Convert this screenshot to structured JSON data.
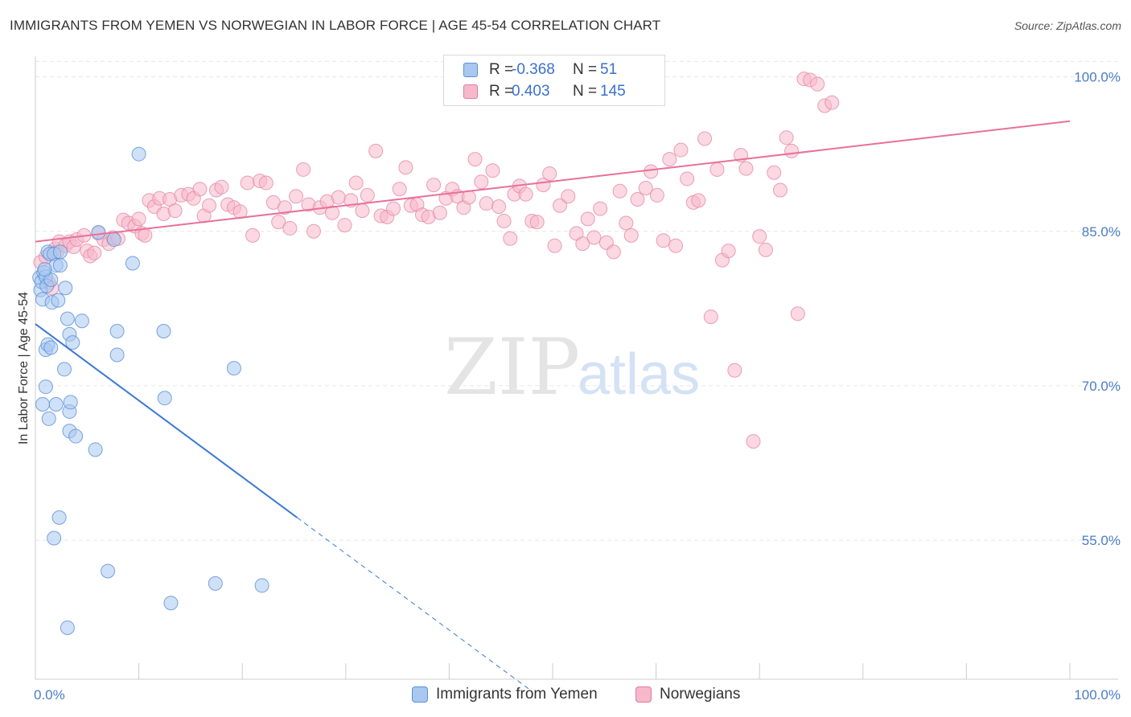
{
  "title": "IMMIGRANTS FROM YEMEN VS NORWEGIAN IN LABOR FORCE | AGE 45-54 CORRELATION CHART",
  "source": "Source: ZipAtlas.com",
  "watermark": {
    "zip": "ZIP",
    "atlas": "atlas"
  },
  "legend": {
    "rows": [
      {
        "r_label": "R =",
        "r_value": "-0.368",
        "n_label": "N =",
        "n_value": "51",
        "color": "#a8c8f0",
        "border": "#5b8fd6"
      },
      {
        "r_label": "R =",
        "r_value": "0.403",
        "n_label": "N =",
        "n_value": "145",
        "color": "#f7b8cb",
        "border": "#e07a9c"
      }
    ]
  },
  "bottom_legend": [
    {
      "label": "Immigrants from Yemen",
      "color": "#a8c8f0",
      "border": "#5b8fd6"
    },
    {
      "label": "Norwegians",
      "color": "#f7b8cb",
      "border": "#e07a9c"
    }
  ],
  "colors": {
    "blue": "#3a78d4",
    "pink": "#e8709a",
    "blue_fill": "#a8c8f0",
    "pink_fill": "#f7b8cb",
    "tick_text": "#4a7cc9"
  },
  "chart_data": {
    "type": "scatter",
    "title": "IMMIGRANTS FROM YEMEN VS NORWEGIAN IN LABOR FORCE | AGE 45-54 CORRELATION CHART",
    "xlabel": "",
    "ylabel": "In Labor Force | Age 45-54",
    "xlim": [
      0,
      100
    ],
    "ylim": [
      41.5,
      102.0
    ],
    "x_tick_labels": [
      "0.0%",
      "100.0%"
    ],
    "y_ticks": [
      55,
      70,
      85,
      100
    ],
    "y_tick_labels": [
      "55.0%",
      "70.0%",
      "85.0%",
      "100.0%"
    ],
    "grid": true,
    "series": [
      {
        "name": "Immigrants from Yemen",
        "color": "#3a78d4",
        "trend": {
          "x0": 0,
          "y0": 76.0,
          "x1": 25.3,
          "y1": 57.2,
          "dash_to_x": 47.9
        },
        "points": [
          [
            0.4,
            80.5
          ],
          [
            0.5,
            79.3
          ],
          [
            0.6,
            80.1
          ],
          [
            0.7,
            78.4
          ],
          [
            0.8,
            81.0
          ],
          [
            1.0,
            80.6
          ],
          [
            1.1,
            79.7
          ],
          [
            1.2,
            83.0
          ],
          [
            1.4,
            82.8
          ],
          [
            1.5,
            80.3
          ],
          [
            1.6,
            78.1
          ],
          [
            1.8,
            82.8
          ],
          [
            2.0,
            81.7
          ],
          [
            2.2,
            78.3
          ],
          [
            2.4,
            81.7
          ],
          [
            2.9,
            79.5
          ],
          [
            3.1,
            76.5
          ],
          [
            3.3,
            75.0
          ],
          [
            3.6,
            74.2
          ],
          [
            4.5,
            76.3
          ],
          [
            6.1,
            84.9
          ],
          [
            7.6,
            84.2
          ],
          [
            7.9,
            75.3
          ],
          [
            7.9,
            73.0
          ],
          [
            9.4,
            81.9
          ],
          [
            10.0,
            92.5
          ],
          [
            12.4,
            75.3
          ],
          [
            12.5,
            68.8
          ],
          [
            1.0,
            73.5
          ],
          [
            1.2,
            74.0
          ],
          [
            1.5,
            73.7
          ],
          [
            2.0,
            68.2
          ],
          [
            2.8,
            71.6
          ],
          [
            0.7,
            68.2
          ],
          [
            1.0,
            69.9
          ],
          [
            1.3,
            66.8
          ],
          [
            3.3,
            67.5
          ],
          [
            3.4,
            68.4
          ],
          [
            3.3,
            65.6
          ],
          [
            3.9,
            65.1
          ],
          [
            5.8,
            63.8
          ],
          [
            2.3,
            57.2
          ],
          [
            1.8,
            55.2
          ],
          [
            7.0,
            52.0
          ],
          [
            13.1,
            48.9
          ],
          [
            17.4,
            50.8
          ],
          [
            21.9,
            50.6
          ],
          [
            3.1,
            46.5
          ],
          [
            19.2,
            71.7
          ],
          [
            2.4,
            83.0
          ],
          [
            0.9,
            81.3
          ]
        ]
      },
      {
        "name": "Norwegians",
        "color": "#e8709a",
        "trend": {
          "x0": 0,
          "y0": 84.0,
          "x1": 100,
          "y1": 95.7
        },
        "points": [
          [
            0.5,
            82.0
          ],
          [
            1.0,
            82.5
          ],
          [
            1.3,
            80.0
          ],
          [
            1.6,
            79.5
          ],
          [
            1.9,
            83.3
          ],
          [
            2.1,
            83.0
          ],
          [
            2.3,
            84.0
          ],
          [
            2.9,
            83.6
          ],
          [
            3.3,
            84.0
          ],
          [
            3.7,
            83.5
          ],
          [
            4.0,
            84.2
          ],
          [
            4.7,
            84.6
          ],
          [
            5.0,
            83.1
          ],
          [
            5.3,
            82.6
          ],
          [
            5.7,
            82.9
          ],
          [
            6.1,
            84.8
          ],
          [
            6.6,
            84.2
          ],
          [
            7.1,
            83.8
          ],
          [
            7.5,
            84.4
          ],
          [
            8.0,
            84.3
          ],
          [
            8.5,
            86.1
          ],
          [
            9.0,
            85.8
          ],
          [
            9.6,
            85.5
          ],
          [
            10.0,
            86.2
          ],
          [
            10.3,
            84.8
          ],
          [
            10.6,
            84.6
          ],
          [
            11.0,
            88.0
          ],
          [
            11.5,
            87.4
          ],
          [
            12.0,
            88.2
          ],
          [
            12.4,
            86.7
          ],
          [
            13.0,
            88.1
          ],
          [
            13.5,
            87.0
          ],
          [
            14.1,
            88.5
          ],
          [
            14.8,
            88.6
          ],
          [
            15.3,
            88.2
          ],
          [
            15.9,
            89.1
          ],
          [
            16.3,
            86.5
          ],
          [
            16.8,
            87.5
          ],
          [
            17.5,
            89.0
          ],
          [
            18.0,
            89.3
          ],
          [
            18.6,
            87.6
          ],
          [
            19.2,
            87.3
          ],
          [
            19.8,
            86.9
          ],
          [
            20.5,
            89.7
          ],
          [
            21.0,
            84.6
          ],
          [
            21.7,
            89.9
          ],
          [
            22.3,
            89.7
          ],
          [
            23.0,
            87.8
          ],
          [
            23.5,
            85.9
          ],
          [
            24.1,
            87.3
          ],
          [
            24.6,
            85.3
          ],
          [
            25.2,
            88.4
          ],
          [
            25.9,
            91.0
          ],
          [
            26.4,
            87.6
          ],
          [
            26.9,
            85.0
          ],
          [
            27.5,
            87.3
          ],
          [
            28.2,
            87.9
          ],
          [
            28.7,
            86.8
          ],
          [
            29.3,
            88.3
          ],
          [
            29.9,
            85.6
          ],
          [
            30.5,
            88.0
          ],
          [
            31.0,
            89.7
          ],
          [
            31.6,
            87.0
          ],
          [
            32.1,
            88.5
          ],
          [
            32.9,
            92.8
          ],
          [
            33.4,
            86.5
          ],
          [
            34.0,
            86.4
          ],
          [
            34.6,
            87.2
          ],
          [
            35.2,
            89.1
          ],
          [
            35.8,
            91.2
          ],
          [
            36.3,
            87.5
          ],
          [
            36.9,
            87.6
          ],
          [
            37.4,
            86.6
          ],
          [
            38.0,
            86.4
          ],
          [
            38.5,
            89.5
          ],
          [
            39.1,
            86.8
          ],
          [
            39.7,
            88.2
          ],
          [
            40.3,
            89.1
          ],
          [
            40.8,
            88.4
          ],
          [
            41.4,
            87.3
          ],
          [
            41.9,
            88.3
          ],
          [
            42.5,
            92.0
          ],
          [
            43.1,
            89.8
          ],
          [
            43.6,
            87.7
          ],
          [
            44.2,
            90.9
          ],
          [
            44.8,
            87.4
          ],
          [
            45.3,
            86.0
          ],
          [
            45.9,
            84.3
          ],
          [
            46.3,
            88.6
          ],
          [
            46.8,
            89.4
          ],
          [
            47.4,
            88.6
          ],
          [
            48.0,
            86.0
          ],
          [
            48.5,
            85.9
          ],
          [
            49.1,
            89.5
          ],
          [
            49.7,
            90.6
          ],
          [
            50.2,
            83.6
          ],
          [
            50.7,
            87.5
          ],
          [
            51.5,
            88.4
          ],
          [
            52.3,
            84.8
          ],
          [
            52.9,
            83.8
          ],
          [
            53.4,
            86.2
          ],
          [
            54.0,
            84.4
          ],
          [
            54.6,
            87.2
          ],
          [
            55.2,
            83.9
          ],
          [
            55.9,
            83.0
          ],
          [
            56.5,
            88.9
          ],
          [
            57.1,
            85.8
          ],
          [
            57.6,
            84.6
          ],
          [
            58.2,
            88.1
          ],
          [
            59.0,
            89.2
          ],
          [
            59.5,
            90.8
          ],
          [
            60.1,
            88.5
          ],
          [
            60.7,
            84.1
          ],
          [
            61.3,
            92.0
          ],
          [
            61.9,
            83.6
          ],
          [
            62.4,
            92.9
          ],
          [
            63.0,
            90.1
          ],
          [
            63.6,
            87.8
          ],
          [
            64.1,
            88.0
          ],
          [
            64.7,
            94.0
          ],
          [
            65.3,
            76.7
          ],
          [
            65.9,
            91.0
          ],
          [
            66.4,
            82.2
          ],
          [
            67.0,
            83.1
          ],
          [
            67.6,
            71.5
          ],
          [
            68.2,
            92.4
          ],
          [
            68.7,
            91.1
          ],
          [
            69.4,
            64.6
          ],
          [
            70.0,
            84.5
          ],
          [
            70.6,
            83.2
          ],
          [
            71.4,
            90.7
          ],
          [
            72.0,
            89.0
          ],
          [
            72.6,
            94.1
          ],
          [
            73.1,
            92.8
          ],
          [
            73.7,
            77.0
          ],
          [
            74.3,
            99.8
          ],
          [
            74.9,
            99.7
          ],
          [
            75.6,
            99.3
          ],
          [
            76.3,
            97.2
          ],
          [
            77.0,
            97.5
          ]
        ]
      }
    ]
  }
}
